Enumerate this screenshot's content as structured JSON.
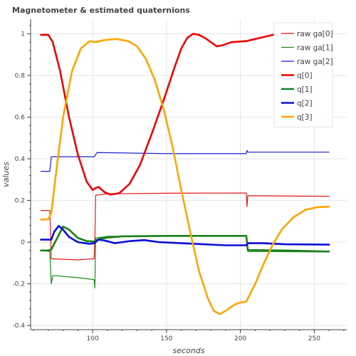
{
  "chart_data": {
    "type": "line",
    "title": "Magnetometer & estimated quaternions",
    "xlabel": "seconds",
    "ylabel": "values",
    "xlim": [
      58,
      272
    ],
    "ylim": [
      -0.42,
      1.07
    ],
    "xticks": [
      100,
      150,
      200,
      250
    ],
    "yticks": [
      -0.4,
      -0.2,
      0,
      0.2,
      0.4,
      0.6,
      0.8,
      1
    ],
    "grid": true,
    "legend_position": "top-right",
    "series": [
      {
        "name": "raw ga[0]",
        "color": "#e31a1c",
        "width": 1.2,
        "points": [
          [
            65,
            0.152
          ],
          [
            71,
            0.152
          ],
          [
            72,
            -0.08
          ],
          [
            90,
            -0.085
          ],
          [
            101,
            -0.08
          ],
          [
            101.5,
            0.01
          ],
          [
            102,
            0.225
          ],
          [
            110,
            0.232
          ],
          [
            150,
            0.235
          ],
          [
            204,
            0.236
          ],
          [
            204.5,
            0.17
          ],
          [
            205,
            0.223
          ],
          [
            260,
            0.22
          ]
        ]
      },
      {
        "name": "raw ga[1]",
        "color": "#1a8a1a",
        "width": 1.2,
        "points": [
          [
            65,
            -0.04
          ],
          [
            71,
            -0.045
          ],
          [
            72,
            -0.2
          ],
          [
            73,
            -0.16
          ],
          [
            90,
            -0.17
          ],
          [
            101,
            -0.18
          ],
          [
            101.5,
            -0.22
          ],
          [
            102,
            0.02
          ],
          [
            110,
            0.028
          ],
          [
            150,
            0.028
          ],
          [
            204,
            0.028
          ],
          [
            205,
            -0.045
          ],
          [
            260,
            -0.047
          ]
        ]
      },
      {
        "name": "raw ga[2]",
        "color": "#1f1fd0",
        "width": 1.2,
        "points": [
          [
            65,
            0.34
          ],
          [
            71,
            0.34
          ],
          [
            72,
            0.41
          ],
          [
            90,
            0.41
          ],
          [
            101,
            0.41
          ],
          [
            103,
            0.43
          ],
          [
            150,
            0.425
          ],
          [
            204,
            0.425
          ],
          [
            204.5,
            0.44
          ],
          [
            205,
            0.432
          ],
          [
            260,
            0.432
          ]
        ]
      },
      {
        "name": "q[0]",
        "color": "#ee0000",
        "width": 2.6,
        "points": [
          [
            65,
            0.995
          ],
          [
            70,
            0.995
          ],
          [
            73,
            0.96
          ],
          [
            78,
            0.82
          ],
          [
            84,
            0.6
          ],
          [
            90,
            0.42
          ],
          [
            96,
            0.29
          ],
          [
            100,
            0.25
          ],
          [
            102,
            0.26
          ],
          [
            104,
            0.265
          ],
          [
            108,
            0.24
          ],
          [
            112,
            0.228
          ],
          [
            118,
            0.235
          ],
          [
            125,
            0.28
          ],
          [
            132,
            0.37
          ],
          [
            140,
            0.52
          ],
          [
            148,
            0.68
          ],
          [
            155,
            0.83
          ],
          [
            160,
            0.93
          ],
          [
            164,
            0.98
          ],
          [
            168,
            1.0
          ],
          [
            172,
            0.995
          ],
          [
            176,
            0.98
          ],
          [
            180,
            0.96
          ],
          [
            184,
            0.94
          ],
          [
            188,
            0.945
          ],
          [
            194,
            0.96
          ],
          [
            204,
            0.965
          ],
          [
            210,
            0.975
          ],
          [
            216,
            0.985
          ],
          [
            222,
            0.995
          ],
          [
            230,
            1.0
          ],
          [
            240,
            1.0
          ],
          [
            250,
            1.0
          ],
          [
            260,
            1.0
          ]
        ]
      },
      {
        "name": "q[1]",
        "color": "#1a7f1a",
        "width": 2.6,
        "points": [
          [
            65,
            -0.04
          ],
          [
            70,
            -0.04
          ],
          [
            72,
            -0.035
          ],
          [
            76,
            0.02
          ],
          [
            80,
            0.075
          ],
          [
            84,
            0.06
          ],
          [
            90,
            0.02
          ],
          [
            96,
            0.005
          ],
          [
            101,
            0.003
          ],
          [
            104,
            0.015
          ],
          [
            110,
            0.022
          ],
          [
            120,
            0.028
          ],
          [
            150,
            0.03
          ],
          [
            204,
            0.03
          ],
          [
            205,
            -0.038
          ],
          [
            230,
            -0.04
          ],
          [
            260,
            -0.045
          ]
        ]
      },
      {
        "name": "q[2]",
        "color": "#0d0dd9",
        "width": 2.6,
        "points": [
          [
            65,
            0.012
          ],
          [
            70,
            0.012
          ],
          [
            72,
            0.012
          ],
          [
            74,
            0.05
          ],
          [
            77,
            0.078
          ],
          [
            80,
            0.06
          ],
          [
            84,
            0.025
          ],
          [
            90,
            0.0
          ],
          [
            98,
            -0.008
          ],
          [
            101,
            -0.005
          ],
          [
            104,
            0.012
          ],
          [
            108,
            0.008
          ],
          [
            115,
            -0.005
          ],
          [
            125,
            0.005
          ],
          [
            135,
            0.01
          ],
          [
            145,
            0.0
          ],
          [
            160,
            -0.005
          ],
          [
            175,
            -0.01
          ],
          [
            190,
            -0.015
          ],
          [
            204,
            -0.015
          ],
          [
            205,
            -0.005
          ],
          [
            215,
            -0.005
          ],
          [
            230,
            -0.01
          ],
          [
            260,
            -0.012
          ]
        ]
      },
      {
        "name": "q[3]",
        "color": "#ffa500",
        "width": 2.6,
        "points": [
          [
            65,
            0.108
          ],
          [
            70,
            0.11
          ],
          [
            72,
            0.14
          ],
          [
            75,
            0.32
          ],
          [
            80,
            0.6
          ],
          [
            86,
            0.82
          ],
          [
            92,
            0.93
          ],
          [
            98,
            0.965
          ],
          [
            102,
            0.96
          ],
          [
            108,
            0.97
          ],
          [
            116,
            0.975
          ],
          [
            124,
            0.965
          ],
          [
            130,
            0.94
          ],
          [
            136,
            0.88
          ],
          [
            142,
            0.78
          ],
          [
            148,
            0.64
          ],
          [
            154,
            0.46
          ],
          [
            160,
            0.25
          ],
          [
            166,
            0.05
          ],
          [
            172,
            -0.14
          ],
          [
            178,
            -0.27
          ],
          [
            182,
            -0.33
          ],
          [
            186,
            -0.345
          ],
          [
            190,
            -0.33
          ],
          [
            196,
            -0.3
          ],
          [
            200,
            -0.29
          ],
          [
            204,
            -0.285
          ],
          [
            210,
            -0.2
          ],
          [
            216,
            -0.1
          ],
          [
            222,
            -0.01
          ],
          [
            228,
            0.06
          ],
          [
            236,
            0.12
          ],
          [
            244,
            0.155
          ],
          [
            252,
            0.168
          ],
          [
            260,
            0.17
          ]
        ]
      }
    ]
  }
}
